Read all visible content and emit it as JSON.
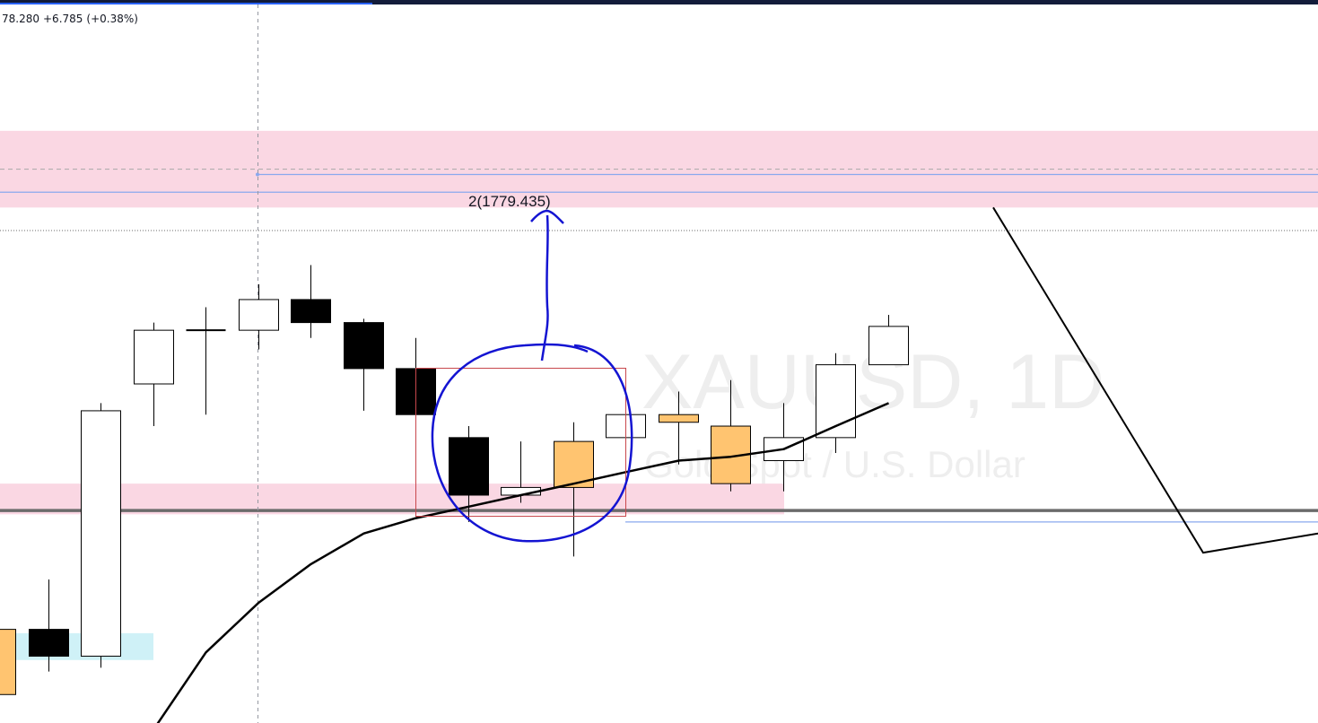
{
  "readout": {
    "price_fragment": "78.280",
    "change": "+6.785",
    "change_percent": "(+0.38%)"
  },
  "watermark": {
    "symbol": "XAUUSD, 1D",
    "description": "Gold Spot / U.S. Dollar"
  },
  "colors": {
    "bear_body": "#000000",
    "bull_body": "#ffffff",
    "highlight_body": "#ffc470",
    "zone_pink": "#fad7e3",
    "zone_cyan": "#cff1f7",
    "ma_line": "#000000",
    "marker_blue": "#1414d2",
    "box_red": "#c8474c",
    "level_blue": "#8aa8ee"
  },
  "chart_data": {
    "type": "candlestick",
    "price_range": [
      1716,
      1795
    ],
    "candles": [
      {
        "o": 1724.5,
        "h": 1724.5,
        "l": 1714.0,
        "c": 1716.0,
        "style": "highlight"
      },
      {
        "o": 1724.5,
        "h": 1731.0,
        "l": 1719.0,
        "c": 1721.0,
        "style": "bear"
      },
      {
        "o": 1721.0,
        "h": 1754.0,
        "l": 1719.5,
        "c": 1753.0,
        "style": "bull"
      },
      {
        "o": 1756.5,
        "h": 1764.5,
        "l": 1751.0,
        "c": 1763.5,
        "style": "bull"
      },
      {
        "o": 1763.5,
        "h": 1766.5,
        "l": 1752.5,
        "c": 1763.5,
        "style": "doji"
      },
      {
        "o": 1763.5,
        "h": 1769.5,
        "l": 1761.0,
        "c": 1767.5,
        "style": "bull"
      },
      {
        "o": 1767.5,
        "h": 1772.0,
        "l": 1762.5,
        "c": 1764.5,
        "style": "bear"
      },
      {
        "o": 1764.5,
        "h": 1765.0,
        "l": 1753.0,
        "c": 1758.5,
        "style": "bear"
      },
      {
        "o": 1758.5,
        "h": 1762.5,
        "l": 1746.5,
        "c": 1752.5,
        "style": "bear"
      },
      {
        "o": 1749.5,
        "h": 1751.0,
        "l": 1738.5,
        "c": 1742.0,
        "style": "bear"
      },
      {
        "o": 1742.0,
        "h": 1749.0,
        "l": 1741.0,
        "c": 1743.0,
        "style": "bull"
      },
      {
        "o": 1743.0,
        "h": 1751.5,
        "l": 1734.0,
        "c": 1749.0,
        "style": "highlight"
      },
      {
        "o": 1749.5,
        "h": 1754.0,
        "l": 1749.5,
        "c": 1752.5,
        "style": "bull"
      },
      {
        "o": 1752.5,
        "h": 1755.5,
        "l": 1746.0,
        "c": 1751.5,
        "style": "highlight"
      },
      {
        "o": 1751.0,
        "h": 1757.0,
        "l": 1742.5,
        "c": 1743.5,
        "style": "highlight"
      },
      {
        "o": 1746.5,
        "h": 1754.0,
        "l": 1742.5,
        "c": 1749.5,
        "style": "bull"
      },
      {
        "o": 1749.5,
        "h": 1760.5,
        "l": 1747.5,
        "c": 1759.0,
        "style": "bull"
      },
      {
        "o": 1759.0,
        "h": 1765.5,
        "l": 1759.0,
        "c": 1764.0,
        "style": "bull"
      }
    ],
    "moving_average": [
      1711.5,
      1721.5,
      1728.0,
      1733.0,
      1737.0,
      1739.0,
      1740.5,
      1742.0,
      1743.5,
      1745.0,
      1746.5,
      1747.0,
      1748.0,
      1751.0,
      1754.0
    ],
    "zones": [
      {
        "name": "supply",
        "top": 1789.5,
        "bottom": 1779.5
      },
      {
        "name": "demand",
        "top": 1743.5,
        "bottom": 1739.5
      },
      {
        "name": "low",
        "top": 1724.0,
        "bottom": 1720.5
      }
    ],
    "levels": [
      {
        "name": "resistance",
        "price": 1781.5
      },
      {
        "name": "upper_zone_dashed",
        "price": 1784.5
      },
      {
        "name": "last_price_dotted",
        "price": 1776.5
      },
      {
        "name": "support_gray",
        "price": 1740.0
      },
      {
        "name": "support_blue",
        "price": 1738.5
      }
    ],
    "zigzag": [
      1779.5,
      1734.5,
      1737.0
    ],
    "annotation": {
      "label": "2(1779.435)",
      "price": 1779.435
    }
  }
}
